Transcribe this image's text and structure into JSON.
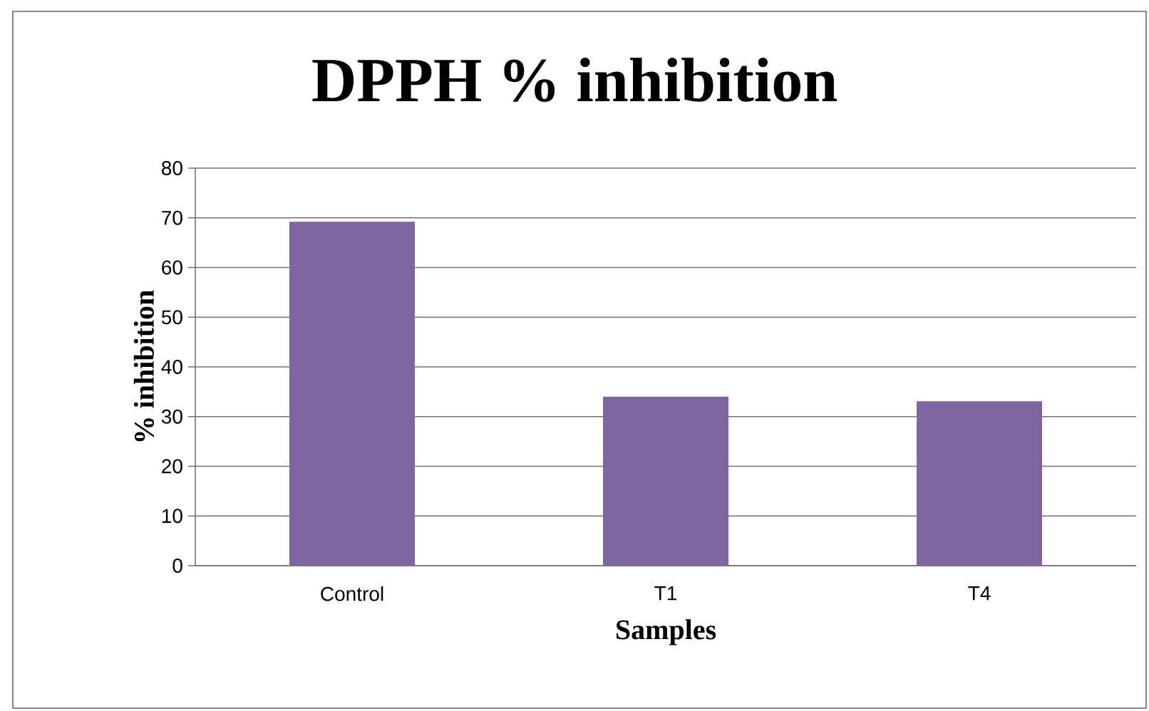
{
  "chart_data": {
    "type": "bar",
    "title": "DPPH % inhibition",
    "xlabel": "Samples",
    "ylabel": "% inhibition",
    "categories": [
      "Control",
      "T1",
      "T4"
    ],
    "values": [
      69.2,
      34.0,
      33.1
    ],
    "color": "#8064a2",
    "ylim": [
      0,
      80
    ],
    "yticks": [
      0,
      10,
      20,
      30,
      40,
      50,
      60,
      70,
      80
    ],
    "grid": "y"
  }
}
